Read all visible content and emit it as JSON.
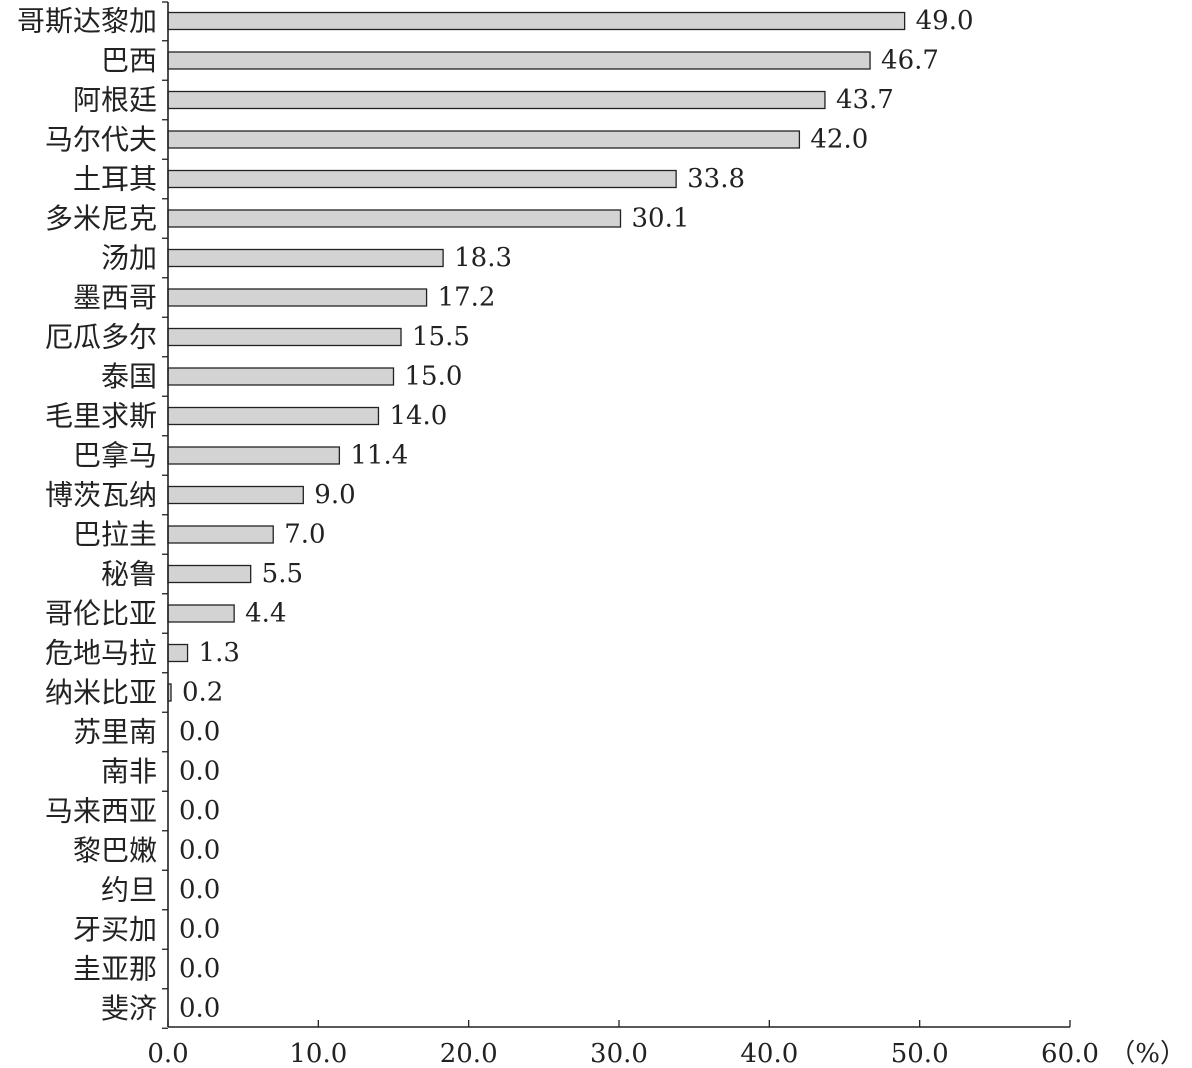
{
  "chart_data": {
    "type": "bar",
    "orientation": "horizontal",
    "categories": [
      "哥斯达黎加",
      "巴西",
      "阿根廷",
      "马尔代夫",
      "土耳其",
      "多米尼克",
      "汤加",
      "墨西哥",
      "厄瓜多尔",
      "泰国",
      "毛里求斯",
      "巴拿马",
      "博茨瓦纳",
      "巴拉圭",
      "秘鲁",
      "哥伦比亚",
      "危地马拉",
      "纳米比亚",
      "苏里南",
      "南非",
      "马来西亚",
      "黎巴嫩",
      "约旦",
      "牙买加",
      "圭亚那",
      "斐济"
    ],
    "values": [
      49.0,
      46.7,
      43.7,
      42.0,
      33.8,
      30.1,
      18.3,
      17.2,
      15.5,
      15.0,
      14.0,
      11.4,
      9.0,
      7.0,
      5.5,
      4.4,
      1.3,
      0.2,
      0.0,
      0.0,
      0.0,
      0.0,
      0.0,
      0.0,
      0.0,
      0.0
    ],
    "value_labels": [
      "49.0",
      "46.7",
      "43.7",
      "42.0",
      "33.8",
      "30.1",
      "18.3",
      "17.2",
      "15.5",
      "15.0",
      "14.0",
      "11.4",
      "9.0",
      "7.0",
      "5.5",
      "4.4",
      "1.3",
      "0.2",
      "0.0",
      "0.0",
      "0.0",
      "0.0",
      "0.0",
      "0.0",
      "0.0",
      "0.0"
    ],
    "xlim": [
      0,
      60
    ],
    "xticks": [
      "0.0",
      "10.0",
      "20.0",
      "30.0",
      "40.0",
      "50.0",
      "60.0"
    ],
    "unit": "（%）",
    "title": "",
    "xlabel": "",
    "ylabel": "",
    "grid": false,
    "legend": "none",
    "colors": {
      "bar_fill": "#d3d3d3",
      "bar_stroke": "#222222",
      "axis": "#222222"
    }
  }
}
